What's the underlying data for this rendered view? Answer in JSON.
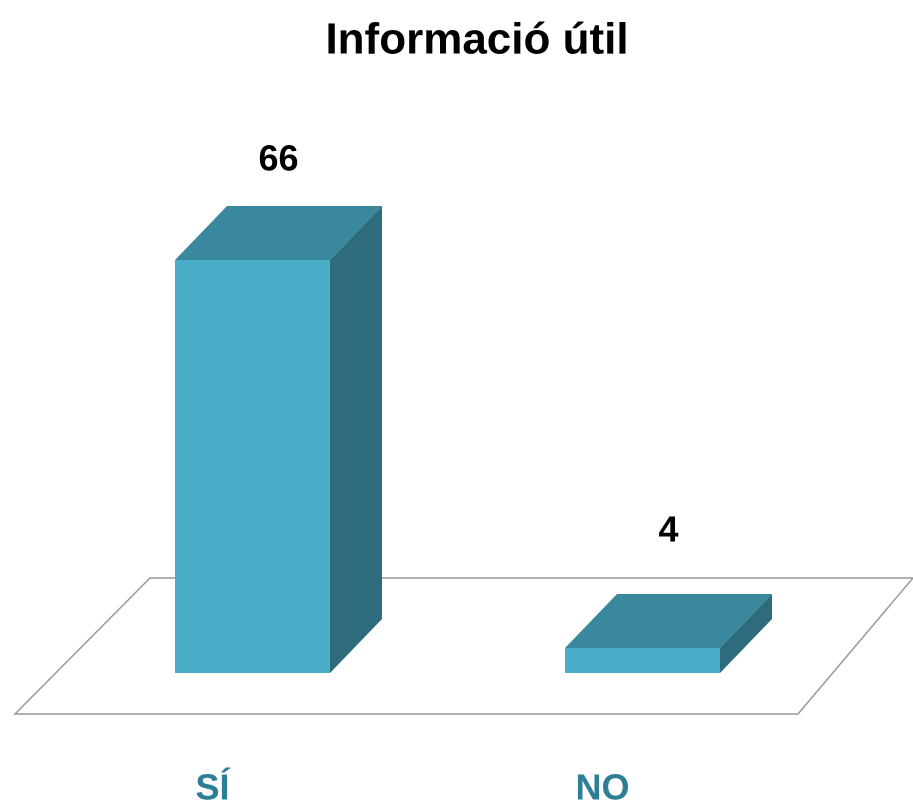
{
  "chart_data": {
    "type": "bar3d",
    "title": "Informació útil",
    "categories": [
      "SÍ",
      "NO"
    ],
    "values": [
      66,
      4
    ],
    "color": "#4aaec9",
    "category_color": "#2e7f96"
  }
}
